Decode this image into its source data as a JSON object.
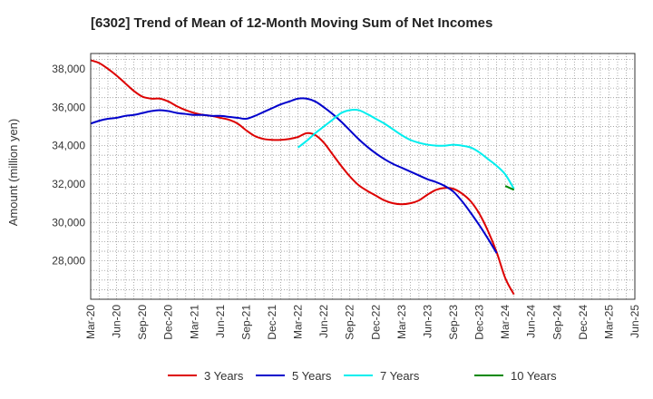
{
  "chart_data": {
    "type": "line",
    "title": "[6302]  Trend of Mean of 12-Month Moving Sum of Net Incomes",
    "xlabel": "",
    "ylabel": "Amount (million yen)",
    "ylim": [
      26000,
      38800
    ],
    "yticks": [
      28000,
      30000,
      32000,
      34000,
      36000,
      38000
    ],
    "ytick_labels": [
      "28,000",
      "30,000",
      "32,000",
      "34,000",
      "36,000",
      "38,000"
    ],
    "x_tick_labels": [
      "Mar-20",
      "Jun-20",
      "Sep-20",
      "Dec-20",
      "Mar-21",
      "Jun-21",
      "Sep-21",
      "Dec-21",
      "Mar-22",
      "Jun-22",
      "Sep-22",
      "Dec-22",
      "Mar-23",
      "Jun-23",
      "Sep-23",
      "Dec-23",
      "Mar-24",
      "Jun-24",
      "Sep-24",
      "Dec-24",
      "Mar-25",
      "Jun-25"
    ],
    "x_start": "Mar-20",
    "grid": true,
    "legend_position": "bottom",
    "series": [
      {
        "name": "3 Years",
        "color": "#dd0000",
        "start_index": 0,
        "values": [
          38450,
          38300,
          38000,
          37650,
          37250,
          36850,
          36550,
          36450,
          36450,
          36300,
          36050,
          35850,
          35700,
          35600,
          35550,
          35450,
          35350,
          35150,
          34800,
          34500,
          34350,
          34300,
          34300,
          34350,
          34450,
          34650,
          34550,
          34150,
          33550,
          32950,
          32400,
          31950,
          31650,
          31400,
          31150,
          31000,
          30950,
          31000,
          31150,
          31450,
          31700,
          31800,
          31750,
          31500,
          31100,
          30450,
          29550,
          28450,
          27100,
          26250
        ]
      },
      {
        "name": "5 Years",
        "color": "#0000cc",
        "start_index": 0,
        "values": [
          35150,
          35300,
          35400,
          35450,
          35550,
          35600,
          35700,
          35800,
          35850,
          35800,
          35700,
          35650,
          35600,
          35600,
          35550,
          35550,
          35500,
          35450,
          35400,
          35550,
          35750,
          35950,
          36150,
          36300,
          36450,
          36450,
          36300,
          36000,
          35650,
          35250,
          34800,
          34350,
          33950,
          33600,
          33300,
          33050,
          32850,
          32650,
          32450,
          32250,
          32100,
          31900,
          31600,
          31100,
          30500,
          29850,
          29150,
          28400
        ]
      },
      {
        "name": "7 Years",
        "color": "#00eeee",
        "start_index": 24,
        "values": [
          33900,
          34250,
          34650,
          35000,
          35350,
          35700,
          35850,
          35850,
          35650,
          35400,
          35150,
          34850,
          34550,
          34300,
          34150,
          34050,
          34000,
          34000,
          34050,
          34000,
          33900,
          33650,
          33300,
          32950,
          32500,
          31750
        ]
      },
      {
        "name": "10 Years",
        "color": "#008800",
        "start_index": 48,
        "values": [
          31900,
          31700
        ]
      }
    ]
  }
}
